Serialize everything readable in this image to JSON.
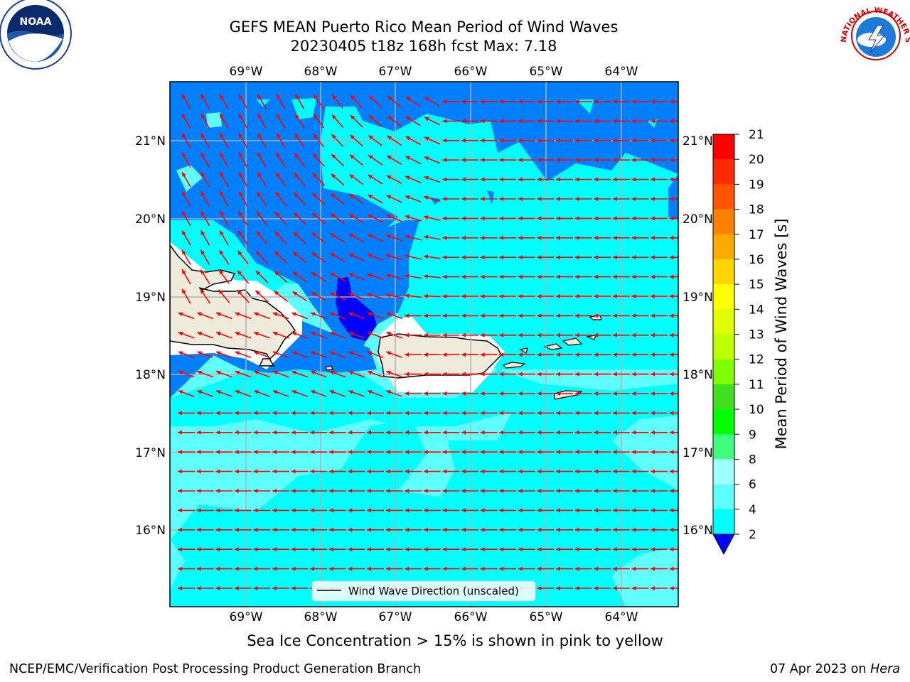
{
  "title": {
    "line1": "GEFS MEAN Puerto Rico Mean Period of Wind Waves",
    "line2": "20230405 t18z 168h fcst   Max: 7.18"
  },
  "map": {
    "lon_labels": [
      "69°W",
      "68°W",
      "67°W",
      "66°W",
      "65°W",
      "64°W"
    ],
    "lat_labels": [
      "21°N",
      "20°N",
      "19°N",
      "18°N",
      "17°N",
      "16°N"
    ],
    "ocean_color": "#00ffff",
    "land_color": "#efebdc",
    "arrow_color": "#ff0000",
    "legend_label": "Wind Wave Direction (unscaled)"
  },
  "colorbar": {
    "label": "Mean Period of Wind Waves [s]",
    "ticks": [
      "21",
      "20",
      "19",
      "18",
      "17",
      "16",
      "15",
      "14",
      "13",
      "12",
      "11",
      "10",
      "9",
      "8",
      "6",
      "4",
      "2"
    ],
    "colors": [
      "#ff0000",
      "#ff2a00",
      "#ff5500",
      "#ff8000",
      "#ffaa00",
      "#ffd400",
      "#ffff00",
      "#e0ff00",
      "#c0ff00",
      "#80ff00",
      "#40e020",
      "#00ff00",
      "#40ff80",
      "#a0ffff",
      "#60ffff",
      "#00ffff",
      "#0080ff"
    ],
    "under_color": "#0000ff"
  },
  "caption": "Sea Ice Concentration > 15% is shown in pink to yellow",
  "footer": {
    "left": "NCEP/EMC/Verification Post Processing Product Generation Branch",
    "date": "07 Apr 2023 on ",
    "host": "Hera"
  },
  "logos": {
    "noaa": "NOAA",
    "nws": "NATIONAL WEATHER SERVICE"
  }
}
